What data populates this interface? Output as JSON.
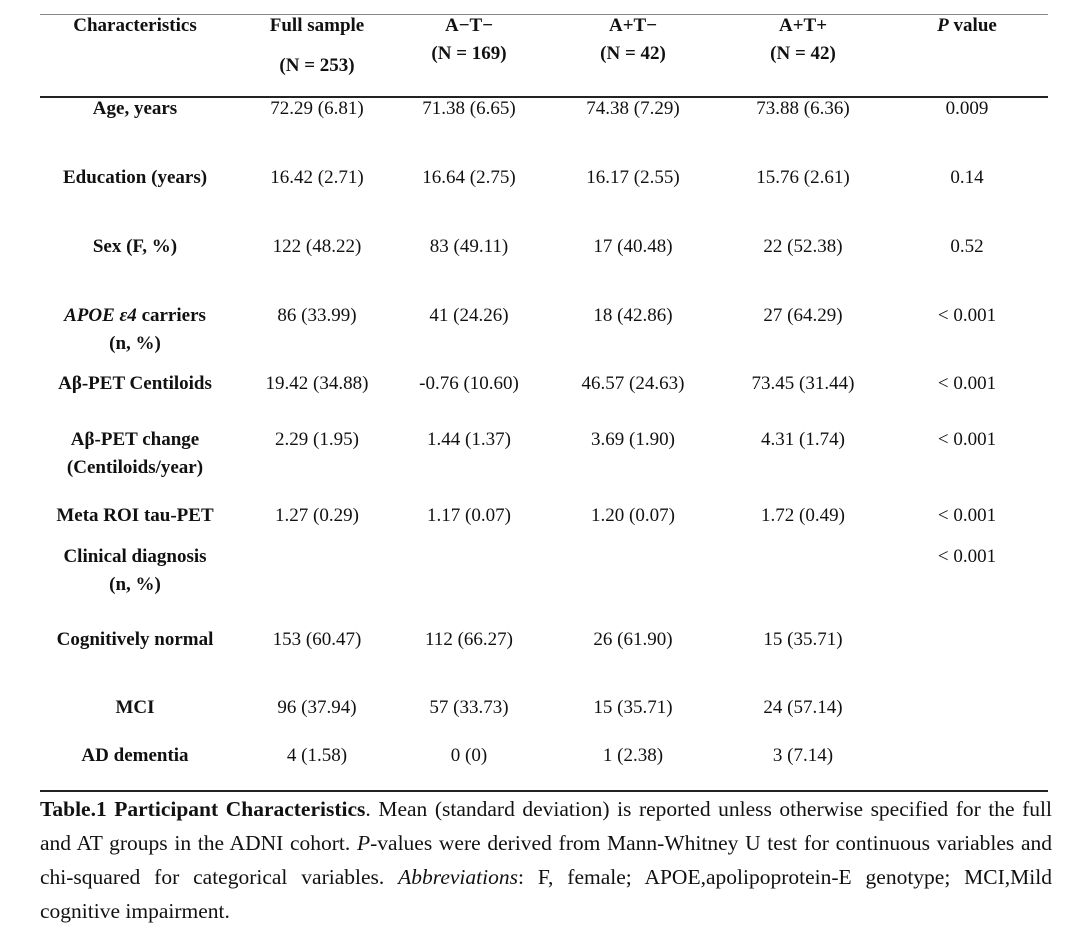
{
  "table": {
    "headers": [
      {
        "line1": "Characteristics",
        "line2": ""
      },
      {
        "line1": "Full sample",
        "line2": "(N = 253)"
      },
      {
        "line1": "A−T−",
        "line2": "(N = 169)"
      },
      {
        "line1": "A+T−",
        "line2": "(N = 42)"
      },
      {
        "line1": "A+T+",
        "line2": "(N = 42)"
      },
      {
        "line1_italic": "P",
        "line1": " value",
        "line2": ""
      }
    ],
    "rows": [
      {
        "label": "Age, years",
        "label2": "",
        "cells": [
          "72.29 (6.81)",
          "71.38 (6.65)",
          "74.38 (7.29)",
          "73.88 (6.36)",
          "0.009"
        ]
      },
      {
        "label": "Education (years)",
        "label2": "",
        "cells": [
          "16.42 (2.71)",
          "16.64 (2.75)",
          "16.17 (2.55)",
          "15.76 (2.61)",
          "0.14"
        ]
      },
      {
        "label": "Sex  (F, %)",
        "label2": "",
        "cells": [
          "122 (48.22)",
          "83 (49.11)",
          "17 (40.48)",
          "22 (52.38)",
          "0.52"
        ]
      },
      {
        "label_italic": "APOE ε4",
        "label": " carriers",
        "label2": "(n, %)",
        "cells": [
          "86 (33.99)",
          "41 (24.26)",
          "18 (42.86)",
          "27 (64.29)",
          "< 0.001"
        ]
      },
      {
        "label": "Aβ-PET Centiloids",
        "label2": "",
        "cells": [
          "19.42 (34.88)",
          "-0.76 (10.60)",
          "46.57 (24.63)",
          "73.45 (31.44)",
          "< 0.001"
        ]
      },
      {
        "label": "Aβ-PET change",
        "label2": "(Centiloids/year)",
        "cells": [
          "2.29 (1.95)",
          "1.44 (1.37)",
          "3.69 (1.90)",
          "4.31 (1.74)",
          "< 0.001"
        ]
      },
      {
        "label": "Meta ROI tau-PET",
        "label2": "",
        "cells": [
          "1.27 (0.29)",
          "1.17 (0.07)",
          "1.20 (0.07)",
          "1.72 (0.49)",
          "< 0.001"
        ]
      },
      {
        "label": "Clinical diagnosis",
        "label2": "(n, %)",
        "cells": [
          "",
          "",
          "",
          "",
          "< 0.001"
        ]
      },
      {
        "label": "Cognitively normal",
        "label2": "",
        "cells": [
          "153 (60.47)",
          "112 (66.27)",
          "26 (61.90)",
          "15 (35.71)",
          ""
        ]
      },
      {
        "label": "MCI",
        "label2": "",
        "cells": [
          "96 (37.94)",
          "57 (33.73)",
          "15 (35.71)",
          "24 (57.14)",
          ""
        ]
      },
      {
        "label": "AD dementia",
        "label2": "",
        "cells": [
          "4 (1.58)",
          "0 (0)",
          "1 (2.38)",
          "3 (7.14)",
          ""
        ]
      }
    ]
  },
  "caption": {
    "title": "Table.1 Participant Characteristics",
    "t1": ". Mean (standard deviation) is reported unless otherwise specified for the full and AT groups in the ADNI cohort. ",
    "p_italic": "P",
    "t2": "-values were derived from Mann-Whitney U test for continuous variables and chi-squared for categorical variables. ",
    "abbr_italic": "Abbreviations",
    "t3": ": F, female; APOE,apolipoprotein-E genotype; MCI,Mild cognitive impairment."
  }
}
